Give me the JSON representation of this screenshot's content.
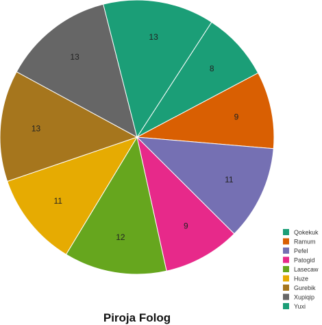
{
  "chart_data": {
    "type": "pie",
    "title": "Piroja Folog",
    "categories": [
      "Qokekuk",
      "Ramum",
      "Pefel",
      "Patogid",
      "Lasecaw",
      "Huze",
      "Gurebik",
      "Xupiqip",
      "Yuxi"
    ],
    "values": [
      8,
      9,
      11,
      9,
      12,
      11,
      13,
      13,
      13
    ],
    "colors": [
      "#1b9e77",
      "#d95f02",
      "#7570b3",
      "#e7298a",
      "#66a61e",
      "#e6ab02",
      "#a6761d",
      "#666666",
      "#1b9e77"
    ],
    "legend": "bottom-right",
    "start_slice_label": "Qokekuk"
  }
}
